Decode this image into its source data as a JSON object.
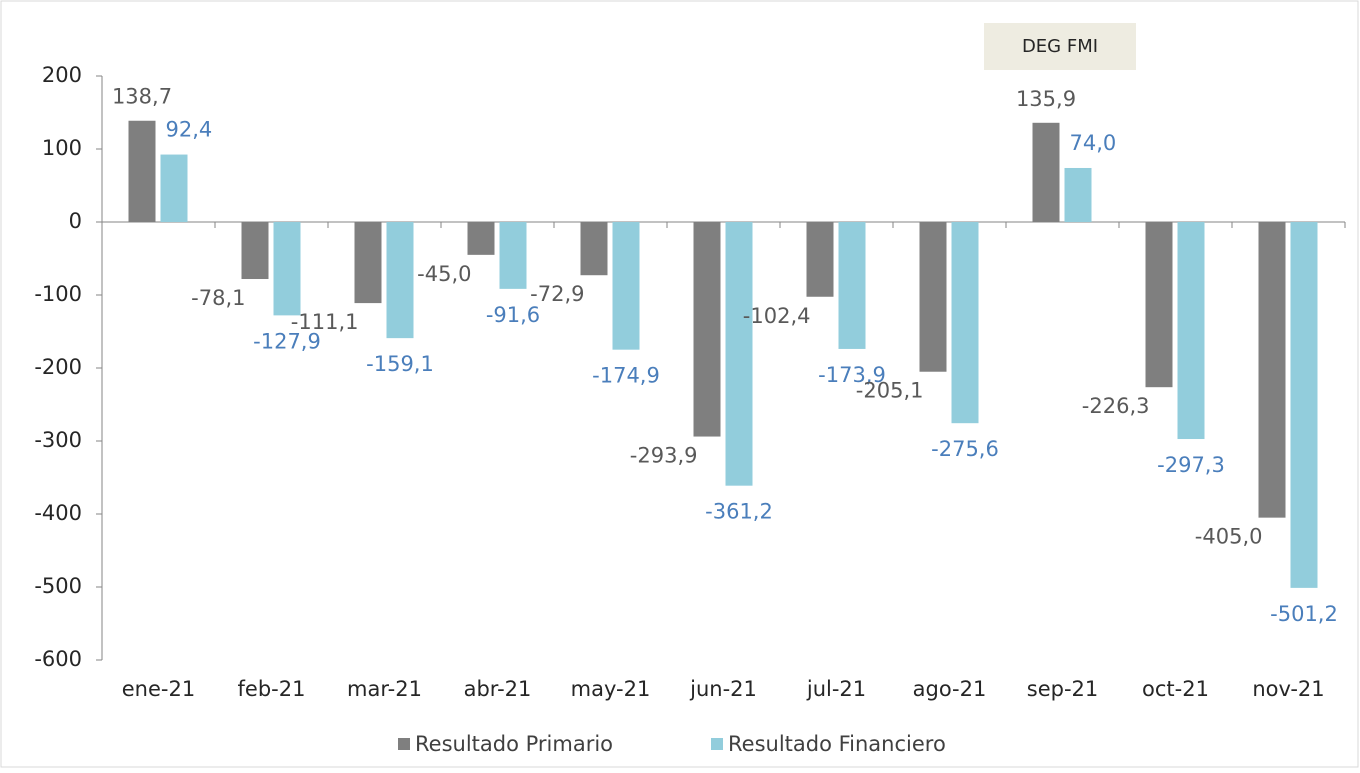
{
  "chart_data": {
    "type": "bar",
    "annotation": "DEG FMI",
    "categories": [
      "ene-21",
      "feb-21",
      "mar-21",
      "abr-21",
      "may-21",
      "jun-21",
      "jul-21",
      "ago-21",
      "sep-21",
      "oct-21",
      "nov-21"
    ],
    "series": [
      {
        "name": "Resultado Primario",
        "color": "#7f7f7f",
        "label_color": "#595959",
        "values": [
          138.7,
          -78.1,
          -111.1,
          -45.0,
          -72.9,
          -293.9,
          -102.4,
          -205.1,
          135.9,
          -226.3,
          -405.0
        ],
        "value_labels": [
          "138,7",
          "-78,1",
          "-111,1",
          "-45,0",
          "-72,9",
          "-293,9",
          "-102,4",
          "-205,1",
          "135,9",
          "-226,3",
          "-405,0"
        ]
      },
      {
        "name": "Resultado Financiero",
        "color": "#92cddc",
        "label_color": "#4a7ebb",
        "values": [
          92.4,
          -127.9,
          -159.1,
          -91.6,
          -174.9,
          -361.2,
          -173.9,
          -275.6,
          74.0,
          -297.3,
          -501.2
        ],
        "value_labels": [
          "92,4",
          "-127,9",
          "-159,1",
          "-91,6",
          "-174,9",
          "-361,2",
          "-173,9",
          "-275,6",
          "74,0",
          "-297,3",
          "-501,2"
        ]
      }
    ],
    "ylim": [
      -600,
      200
    ],
    "yticks": [
      200,
      100,
      0,
      -100,
      -200,
      -300,
      -400,
      -500,
      -600
    ]
  }
}
